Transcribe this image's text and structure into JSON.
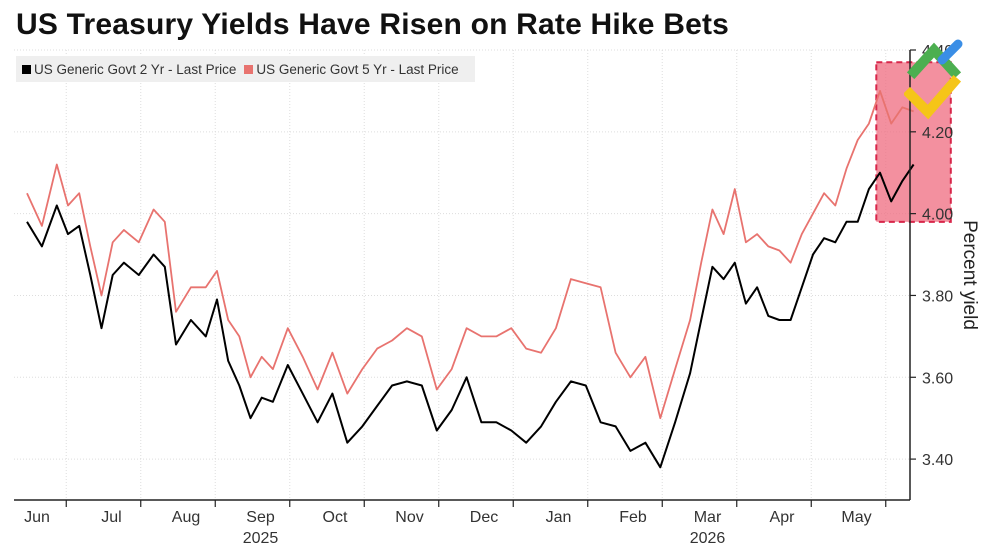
{
  "title": "US Treasury Yields Have Risen on Rate Hike Bets",
  "legend": [
    {
      "label": "US Generic Govt 2 Yr - Last Price",
      "color": "#000000"
    },
    {
      "label": "US Generic Govt 5 Yr - Last Price",
      "color": "#e8736f"
    }
  ],
  "colors": {
    "series_2yr": "#000000",
    "series_5yr": "#e8736f",
    "highlight_fill": "#ef6b7f",
    "highlight_border": "#d8264a",
    "grid": "#dddddd",
    "logo_green": "#4caf50",
    "logo_blue": "#3a8ee6",
    "logo_yellow": "#f5c518"
  },
  "logo": {
    "icon": "brand-logo-icon"
  },
  "chart_data": {
    "type": "line",
    "title": "US Treasury Yields Have Risen on Rate Hike Bets",
    "ylabel": "Percent yield",
    "ylim": [
      3.3,
      4.4
    ],
    "yticks": [
      3.4,
      3.6,
      3.8,
      4.0,
      4.2,
      4.4
    ],
    "ytick_labels": [
      "3.40",
      "3.60",
      "3.80",
      "4.00",
      "4.20",
      "4.40"
    ],
    "grid": true,
    "legend_position": "top-left",
    "x_type": "month-index",
    "xlim": [
      0,
      12.4
    ],
    "months": [
      "Jun",
      "Jul",
      "Aug",
      "Sep",
      "Oct",
      "Nov",
      "Dec",
      "Jan",
      "Feb",
      "Mar",
      "Apr",
      "May"
    ],
    "year_labels": [
      {
        "label": "2025",
        "month_index": 3
      },
      {
        "label": "2026",
        "month_index": 9
      }
    ],
    "highlight": {
      "x_start": 11.4,
      "x_end": 12.4,
      "y_start": 3.98,
      "y_end": 4.37
    },
    "series": [
      {
        "name": "US Generic Govt 2 Yr - Last Price",
        "x": [
          0,
          0.2,
          0.4,
          0.55,
          0.7,
          0.85,
          1.0,
          1.15,
          1.3,
          1.5,
          1.7,
          1.85,
          2.0,
          2.2,
          2.4,
          2.55,
          2.7,
          2.85,
          3.0,
          3.15,
          3.3,
          3.5,
          3.7,
          3.9,
          4.1,
          4.3,
          4.5,
          4.7,
          4.9,
          5.1,
          5.3,
          5.5,
          5.7,
          5.9,
          6.1,
          6.3,
          6.5,
          6.7,
          6.9,
          7.1,
          7.3,
          7.5,
          7.7,
          7.9,
          8.1,
          8.3,
          8.5,
          8.7,
          8.9,
          9.05,
          9.2,
          9.35,
          9.5,
          9.65,
          9.8,
          9.95,
          10.1,
          10.25,
          10.4,
          10.55,
          10.7,
          10.85,
          11.0,
          11.15,
          11.3,
          11.45,
          11.6,
          11.75,
          11.9
        ],
        "values": [
          3.98,
          3.92,
          4.02,
          3.95,
          3.97,
          3.85,
          3.72,
          3.85,
          3.88,
          3.85,
          3.9,
          3.87,
          3.68,
          3.74,
          3.7,
          3.79,
          3.64,
          3.58,
          3.5,
          3.55,
          3.54,
          3.63,
          3.56,
          3.49,
          3.56,
          3.44,
          3.48,
          3.53,
          3.58,
          3.59,
          3.58,
          3.47,
          3.52,
          3.6,
          3.49,
          3.49,
          3.47,
          3.44,
          3.48,
          3.54,
          3.59,
          3.58,
          3.49,
          3.48,
          3.42,
          3.44,
          3.38,
          3.49,
          3.61,
          3.74,
          3.87,
          3.84,
          3.88,
          3.78,
          3.82,
          3.75,
          3.74,
          3.74,
          3.82,
          3.9,
          3.94,
          3.93,
          3.98,
          3.98,
          4.06,
          4.1,
          4.03,
          4.08,
          4.12
        ]
      },
      {
        "name": "US Generic Govt 5 Yr - Last Price",
        "x": [
          0,
          0.2,
          0.4,
          0.55,
          0.7,
          0.85,
          1.0,
          1.15,
          1.3,
          1.5,
          1.7,
          1.85,
          2.0,
          2.2,
          2.4,
          2.55,
          2.7,
          2.85,
          3.0,
          3.15,
          3.3,
          3.5,
          3.7,
          3.9,
          4.1,
          4.3,
          4.5,
          4.7,
          4.9,
          5.1,
          5.3,
          5.5,
          5.7,
          5.9,
          6.1,
          6.3,
          6.5,
          6.7,
          6.9,
          7.1,
          7.3,
          7.5,
          7.7,
          7.9,
          8.1,
          8.3,
          8.5,
          8.7,
          8.9,
          9.05,
          9.2,
          9.35,
          9.5,
          9.65,
          9.8,
          9.95,
          10.1,
          10.25,
          10.4,
          10.55,
          10.7,
          10.85,
          11.0,
          11.15,
          11.3,
          11.45,
          11.6,
          11.75,
          11.9
        ],
        "values": [
          4.05,
          3.97,
          4.12,
          4.02,
          4.05,
          3.92,
          3.8,
          3.93,
          3.96,
          3.93,
          4.01,
          3.98,
          3.76,
          3.82,
          3.82,
          3.86,
          3.74,
          3.7,
          3.6,
          3.65,
          3.62,
          3.72,
          3.65,
          3.57,
          3.66,
          3.56,
          3.62,
          3.67,
          3.69,
          3.72,
          3.7,
          3.57,
          3.62,
          3.72,
          3.7,
          3.7,
          3.72,
          3.67,
          3.66,
          3.72,
          3.84,
          3.83,
          3.82,
          3.66,
          3.6,
          3.65,
          3.5,
          3.62,
          3.74,
          3.88,
          4.01,
          3.95,
          4.06,
          3.93,
          3.95,
          3.92,
          3.91,
          3.88,
          3.95,
          4.0,
          4.05,
          4.02,
          4.11,
          4.18,
          4.22,
          4.3,
          4.22,
          4.26,
          4.25
        ]
      }
    ]
  }
}
